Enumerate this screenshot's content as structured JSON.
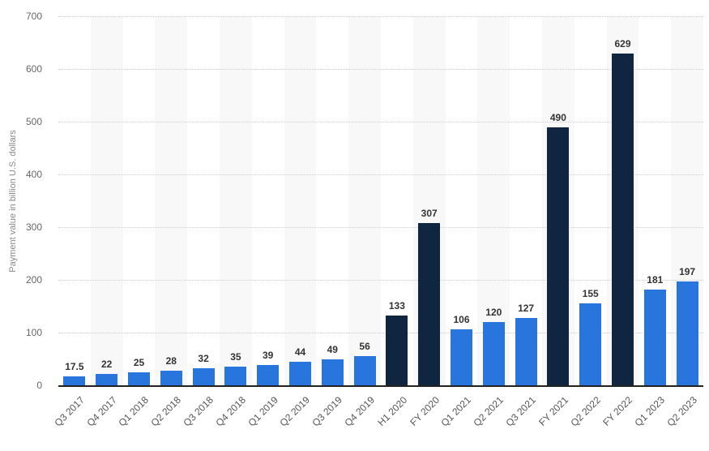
{
  "chart_data": {
    "type": "bar",
    "title": "",
    "xlabel": "",
    "ylabel": "Payment value in billion U.S. dollars",
    "ylim": [
      0,
      700
    ],
    "yticks": [
      0,
      100,
      200,
      300,
      400,
      500,
      600,
      700
    ],
    "grid": true,
    "legend": null,
    "categories": [
      "Q3 2017",
      "Q4 2017",
      "Q1 2018",
      "Q2 2018",
      "Q3 2018",
      "Q4 2018",
      "Q1 2019",
      "Q2 2019",
      "Q3 2019",
      "Q4 2019",
      "H1 2020",
      "FY 2020",
      "Q1 2021",
      "Q2 2021",
      "Q3 2021",
      "FY 2021",
      "Q2 2022",
      "FY 2022",
      "Q1 2023",
      "Q2 2023"
    ],
    "values": [
      17.5,
      22,
      25,
      28,
      32,
      35,
      39,
      44,
      49,
      56,
      133,
      307,
      106,
      120,
      127,
      490,
      155,
      629,
      181,
      197
    ],
    "value_labels": [
      "17.5",
      "22",
      "25",
      "28",
      "32",
      "35",
      "39",
      "44",
      "49",
      "56",
      "133",
      "307",
      "106",
      "120",
      "127",
      "490",
      "155",
      "629",
      "181",
      "197"
    ],
    "bar_types": [
      "quarter",
      "quarter",
      "quarter",
      "quarter",
      "quarter",
      "quarter",
      "quarter",
      "quarter",
      "quarter",
      "quarter",
      "annual",
      "annual",
      "quarter",
      "quarter",
      "quarter",
      "annual",
      "quarter",
      "annual",
      "quarter",
      "quarter"
    ]
  },
  "colors": {
    "quarter": "#2876dd",
    "annual": "#0f2540",
    "stripe": "#f8f8f8"
  }
}
